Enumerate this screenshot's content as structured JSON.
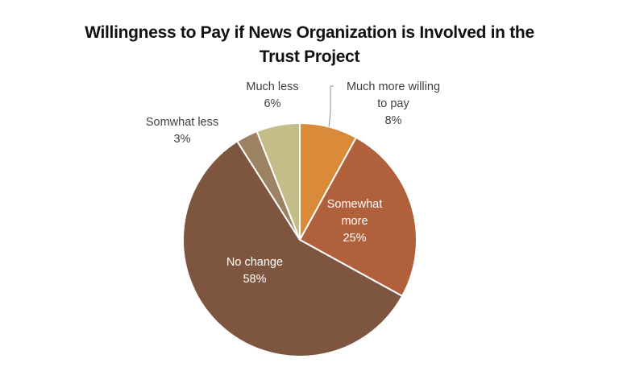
{
  "chart_data": {
    "type": "pie",
    "title_lines": [
      "Willingness to Pay if News Organization is Involved in the",
      "Trust Project"
    ],
    "start": "12 o'clock, clockwise",
    "slices": [
      {
        "name": "Much more willing to pay",
        "label_lines": [
          "Much more willing",
          "to pay"
        ],
        "value": 8,
        "value_label": "8%",
        "color": "#D98B3A",
        "label_position": "outside",
        "label_color": "#404040"
      },
      {
        "name": "Somewhat more",
        "label_lines": [
          "Somewhat",
          "more"
        ],
        "value": 25,
        "value_label": "25%",
        "color": "#B0603A",
        "label_position": "inside",
        "label_color": "#FFFFFF"
      },
      {
        "name": "No change",
        "label_lines": [
          "No change"
        ],
        "value": 58,
        "value_label": "58%",
        "color": "#7E5640",
        "label_position": "inside",
        "label_color": "#FFFFFF"
      },
      {
        "name": "Somwhat less",
        "label_lines": [
          "Somwhat less"
        ],
        "value": 3,
        "value_label": "3%",
        "color": "#9C8260",
        "label_position": "outside",
        "label_color": "#404040"
      },
      {
        "name": "Much less",
        "label_lines": [
          "Much less"
        ],
        "value": 6,
        "value_label": "6%",
        "color": "#C4BD88",
        "label_position": "outside",
        "label_color": "#404040"
      }
    ]
  }
}
